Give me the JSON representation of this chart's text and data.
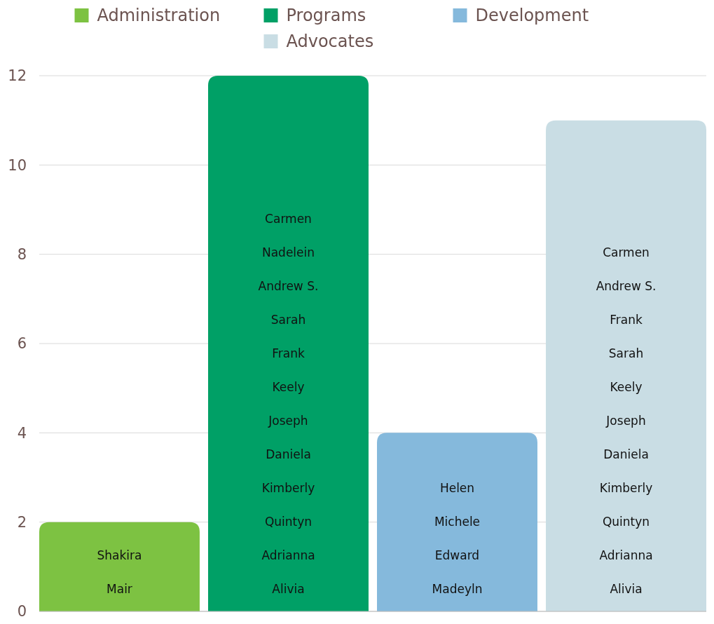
{
  "chart_data": {
    "type": "bar",
    "categories": [
      null,
      null,
      null,
      null
    ],
    "series": [
      {
        "name": "Administration",
        "color": "#7dc242",
        "values": [
          2,
          null,
          null,
          null
        ],
        "value_labels": [
          "Shakira\nMair",
          null,
          null,
          null
        ]
      },
      {
        "name": "Programs",
        "color": "#00a066",
        "values": [
          null,
          12,
          null,
          null
        ],
        "value_labels": [
          null,
          "Carmen\nNadelein\nAndrew S.\nSarah\nFrank\nKeely\nJoseph\nDaniela\nKimberly\nQuintyn\nAdrianna\nAlivia",
          null,
          null
        ]
      },
      {
        "name": "Development",
        "color": "#85b9dc",
        "values": [
          null,
          null,
          4,
          null
        ],
        "value_labels": [
          null,
          null,
          "Helen\nMichele\nEdward\nMadeyln",
          null
        ]
      },
      {
        "name": "Advocates",
        "color": "#c9dde4",
        "values": [
          null,
          null,
          null,
          11
        ],
        "value_labels": [
          null,
          null,
          null,
          "Carmen\nAndrew S.\nFrank\nSarah\nKeely\nJoseph\nDaniela\nKimberly\nQuintyn\nAdrianna\nAlivia"
        ]
      }
    ],
    "ylim": [
      0,
      12
    ],
    "yticks": [
      0,
      2,
      4,
      6,
      8,
      10,
      12
    ],
    "grid": "y",
    "legend": "top"
  }
}
